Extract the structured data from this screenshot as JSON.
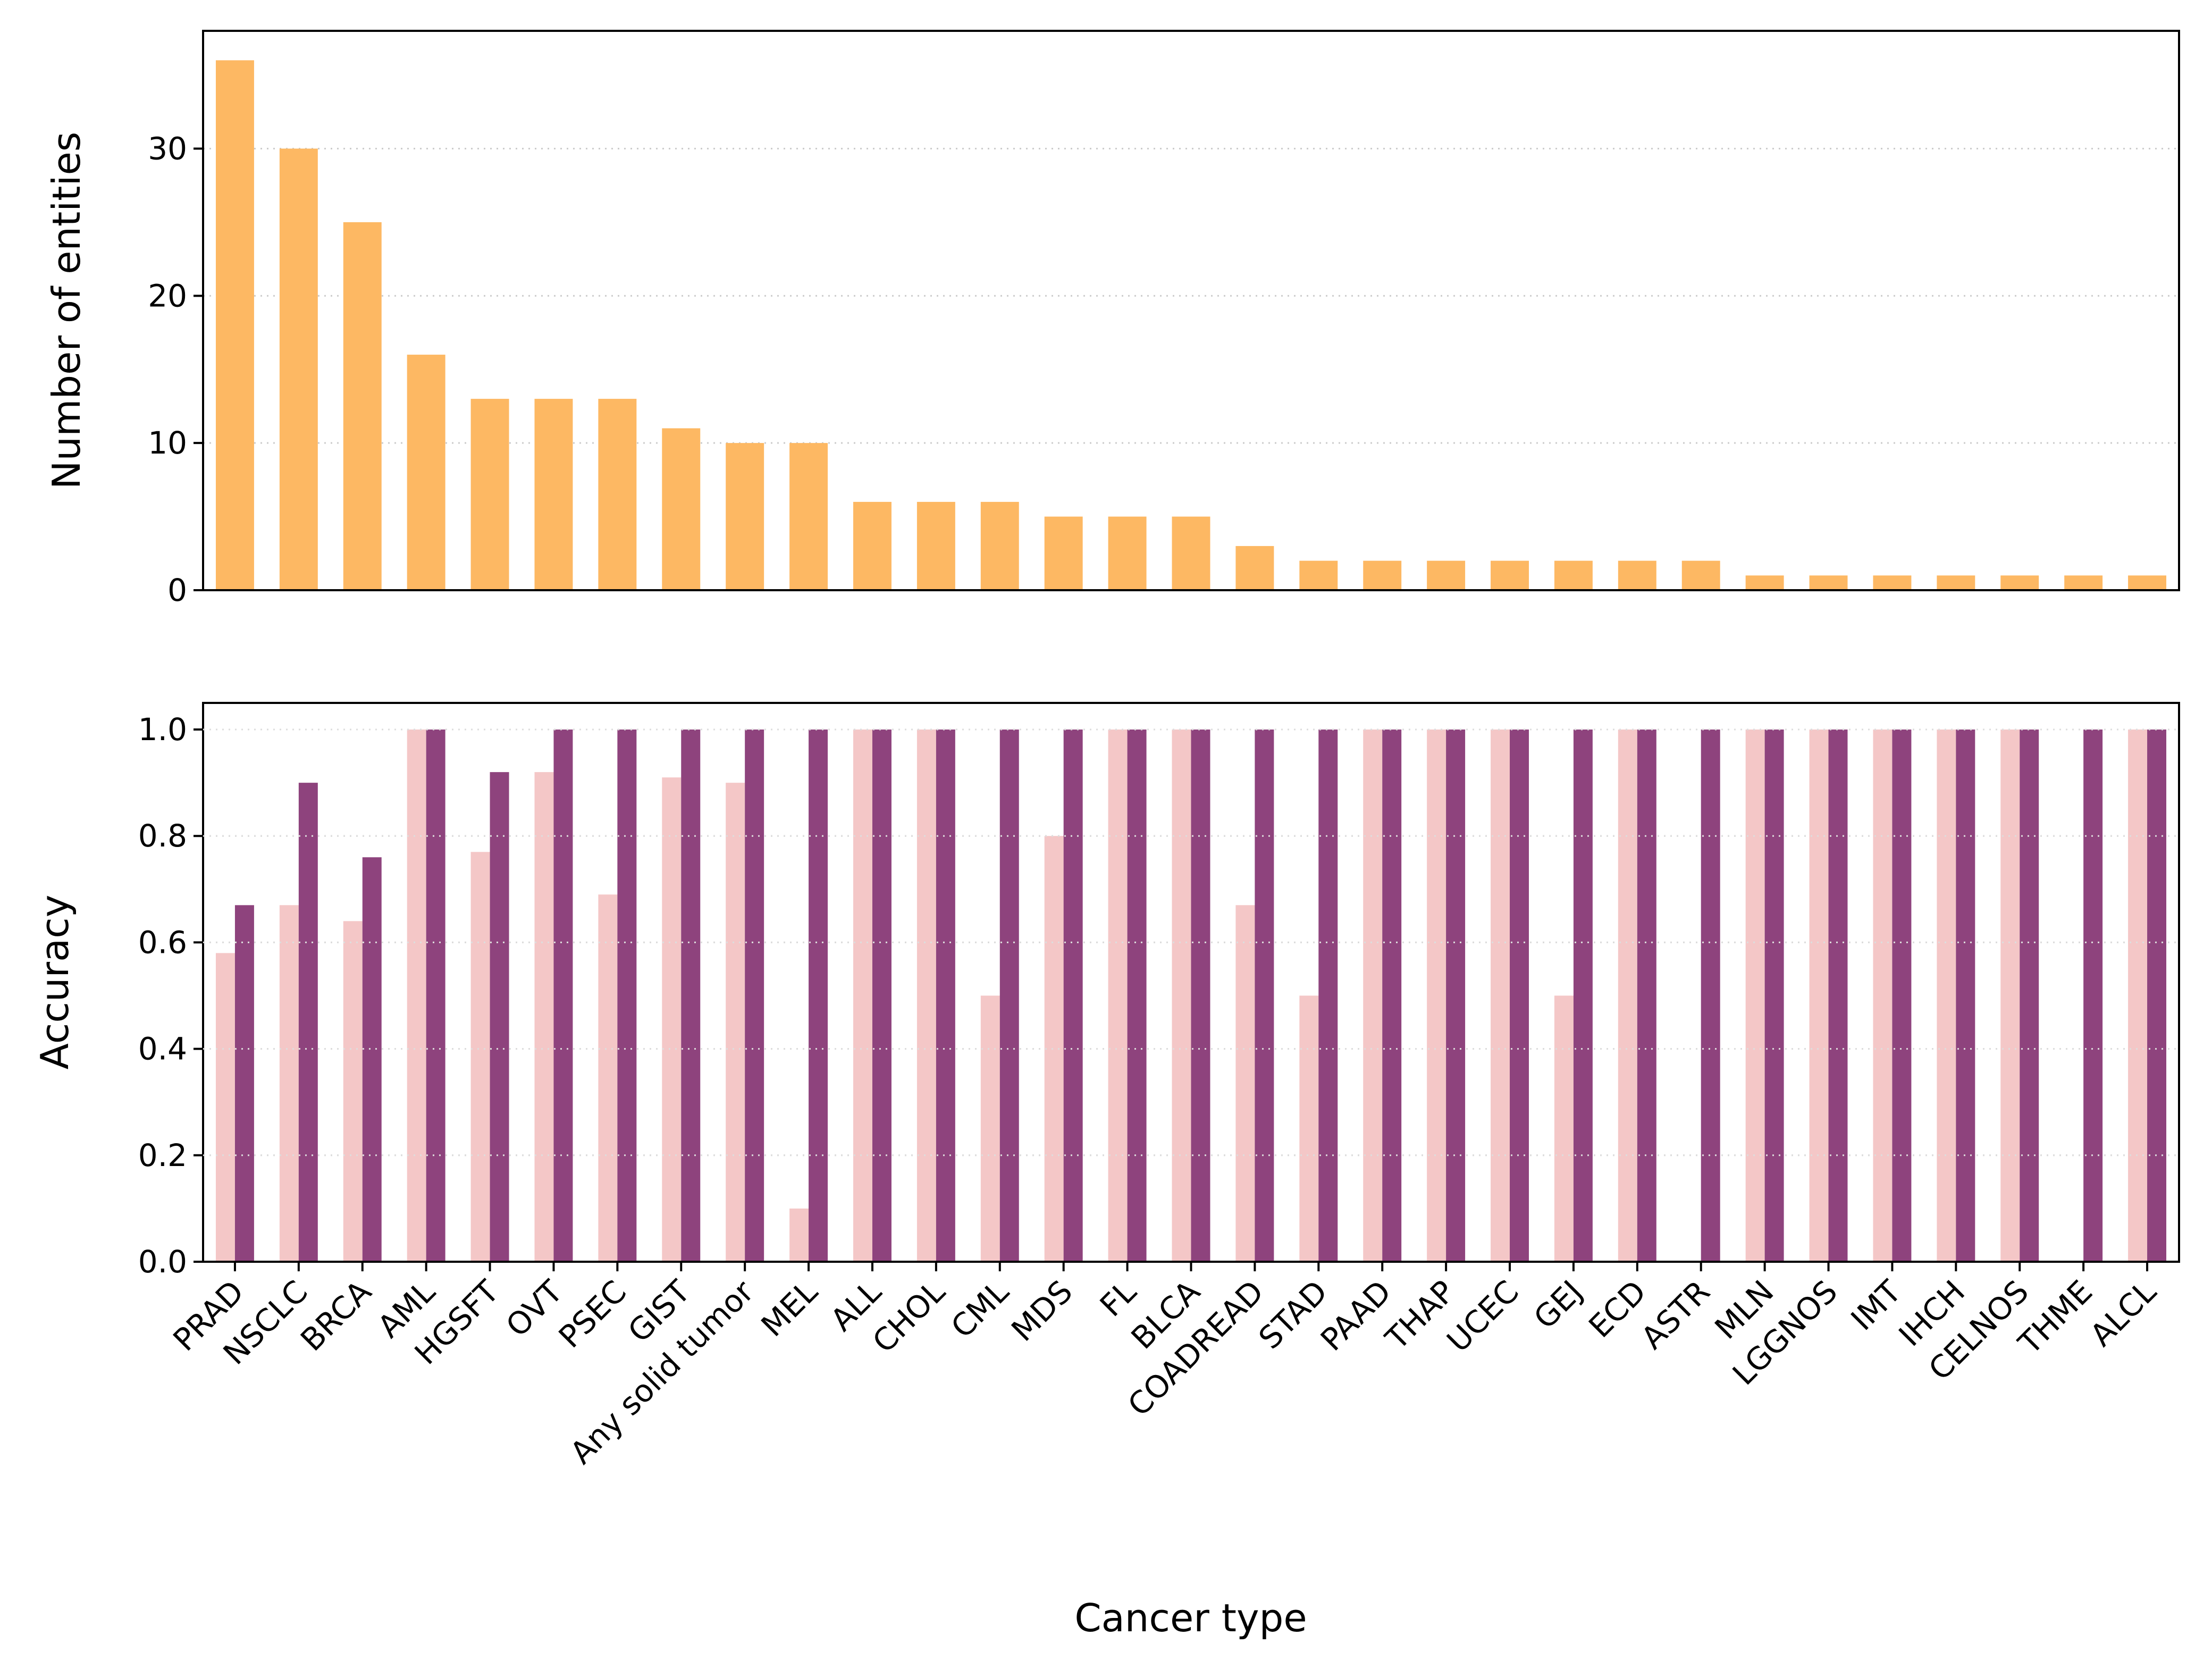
{
  "chart_data": [
    {
      "type": "bar",
      "ylabel": "Number of entities",
      "ylim": [
        0,
        38
      ],
      "yticks": [
        0,
        10,
        20,
        30
      ],
      "grid": "horizontal dotted",
      "color": "#fdb863",
      "categories": [
        "PRAD",
        "NSCLC",
        "BRCA",
        "AML",
        "HGSFT",
        "OVT",
        "PSEC",
        "GIST",
        "Any solid tumor",
        "MEL",
        "ALL",
        "CHOL",
        "CML",
        "MDS",
        "FL",
        "BLCA",
        "COADREAD",
        "STAD",
        "PAAD",
        "THAP",
        "UCEC",
        "GEJ",
        "ECD",
        "ASTR",
        "MLN",
        "LGGNOS",
        "IMT",
        "IHCH",
        "CELNOS",
        "THME",
        "ALCL"
      ],
      "values": [
        36,
        30,
        25,
        16,
        13,
        13,
        13,
        11,
        10,
        10,
        6,
        6,
        6,
        5,
        5,
        5,
        3,
        2,
        2,
        2,
        2,
        2,
        2,
        2,
        1,
        1,
        1,
        1,
        1,
        1,
        1
      ]
    },
    {
      "type": "bar",
      "xlabel": "Cancer type",
      "ylabel": "Accuracy",
      "ylim": [
        0,
        1.05
      ],
      "yticks": [
        "0.0",
        "0.2",
        "0.4",
        "0.6",
        "0.8",
        "1.0"
      ],
      "grid": "horizontal dotted",
      "categories": [
        "PRAD",
        "NSCLC",
        "BRCA",
        "AML",
        "HGSFT",
        "OVT",
        "PSEC",
        "GIST",
        "Any solid tumor",
        "MEL",
        "ALL",
        "CHOL",
        "CML",
        "MDS",
        "FL",
        "BLCA",
        "COADREAD",
        "STAD",
        "PAAD",
        "THAP",
        "UCEC",
        "GEJ",
        "ECD",
        "ASTR",
        "MLN",
        "LGGNOS",
        "IMT",
        "IHCH",
        "CELNOS",
        "THME",
        "ALCL"
      ],
      "series": [
        {
          "color": "#f4c7c7",
          "values": [
            0.58,
            0.67,
            0.64,
            1.0,
            0.77,
            0.92,
            0.69,
            0.91,
            0.9,
            0.1,
            1.0,
            1.0,
            0.5,
            0.8,
            1.0,
            1.0,
            0.67,
            0.5,
            1.0,
            1.0,
            1.0,
            0.5,
            1.0,
            0,
            1.0,
            1.0,
            1.0,
            1.0,
            1.0,
            0,
            1.0
          ]
        },
        {
          "color": "#8e437d",
          "values": [
            0.67,
            0.9,
            0.76,
            1.0,
            0.92,
            1.0,
            1.0,
            1.0,
            1.0,
            1.0,
            1.0,
            1.0,
            1.0,
            1.0,
            1.0,
            1.0,
            1.0,
            1.0,
            1.0,
            1.0,
            1.0,
            1.0,
            1.0,
            1.0,
            1.0,
            1.0,
            1.0,
            1.0,
            1.0,
            1.0,
            1.0
          ]
        }
      ]
    }
  ]
}
